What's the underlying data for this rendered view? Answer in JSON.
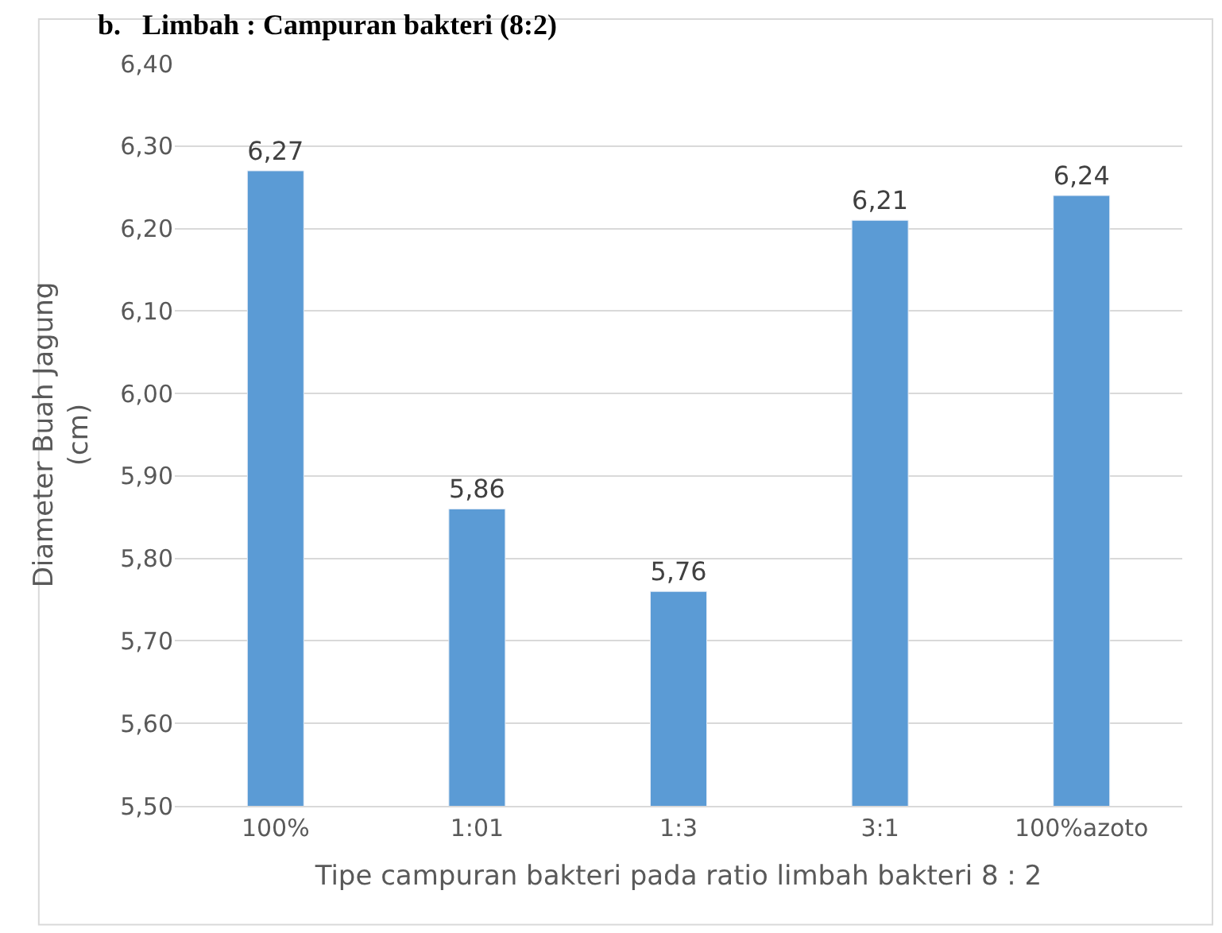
{
  "chart_data": {
    "type": "bar",
    "title": "b.   Limbah : Campuran bakteri (8:2)",
    "xlabel": "Tipe campuran bakteri pada ratio limbah bakteri 8 : 2",
    "ylabel": "Diameter Buah Jagung\n(cm)",
    "categories": [
      "100%",
      "1:01",
      "1:3",
      "3:1",
      "100%azoto"
    ],
    "values": [
      6.27,
      5.86,
      5.76,
      6.21,
      6.24
    ],
    "value_labels": [
      "6,27",
      "5,86",
      "5,76",
      "6,21",
      "6,24"
    ],
    "color": "#5b9bd5",
    "ylim": [
      5.5,
      6.4
    ],
    "yticks": [
      {
        "value": 5.5,
        "label": "5,50"
      },
      {
        "value": 5.6,
        "label": "5,60"
      },
      {
        "value": 5.7,
        "label": "5,70"
      },
      {
        "value": 5.8,
        "label": "5,80"
      },
      {
        "value": 5.9,
        "label": "5,90"
      },
      {
        "value": 6.0,
        "label": "6,00"
      },
      {
        "value": 6.1,
        "label": "6,10"
      },
      {
        "value": 6.2,
        "label": "6,20"
      },
      {
        "value": 6.3,
        "label": "6,30"
      },
      {
        "value": 6.4,
        "label": "6,40"
      }
    ],
    "grid": "y",
    "legend": false
  }
}
